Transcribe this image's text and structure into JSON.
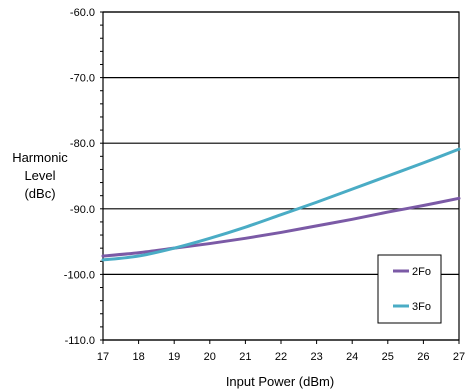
{
  "chart_data": {
    "type": "line",
    "xlabel": "Input Power (dBm)",
    "ylabel_lines": [
      "Harmonic",
      "Level",
      "(dBc)"
    ],
    "xlim": [
      17,
      27
    ],
    "ylim": [
      -110,
      -60
    ],
    "x_ticks": [
      17,
      18,
      19,
      20,
      21,
      22,
      23,
      24,
      25,
      26,
      27
    ],
    "y_ticks": [
      -60,
      -70,
      -80,
      -90,
      -100,
      -110
    ],
    "y_tick_labels": [
      "-60.0",
      "-70.0",
      "-80.0",
      "-90.0",
      "-100.0",
      "-110.0"
    ],
    "x_tick_labels": [
      "17",
      "18",
      "19",
      "20",
      "21",
      "22",
      "23",
      "24",
      "25",
      "26",
      "27"
    ],
    "grid": true,
    "legend_position": "bottom-right",
    "series": [
      {
        "name": "2Fo",
        "color": "#7b5aa6",
        "x": [
          17,
          18,
          19,
          20,
          21,
          22,
          23,
          24,
          25,
          26,
          27
        ],
        "y": [
          -97.2,
          -96.7,
          -96.0,
          -95.3,
          -94.5,
          -93.6,
          -92.6,
          -91.6,
          -90.5,
          -89.5,
          -88.4
        ]
      },
      {
        "name": "3Fo",
        "color": "#4aacc5",
        "x": [
          17,
          18,
          19,
          20,
          21,
          22,
          23,
          24,
          25,
          26,
          27
        ],
        "y": [
          -97.8,
          -97.2,
          -96.0,
          -94.5,
          -92.8,
          -90.9,
          -89.0,
          -87.0,
          -85.0,
          -83.0,
          -80.9
        ]
      }
    ]
  }
}
